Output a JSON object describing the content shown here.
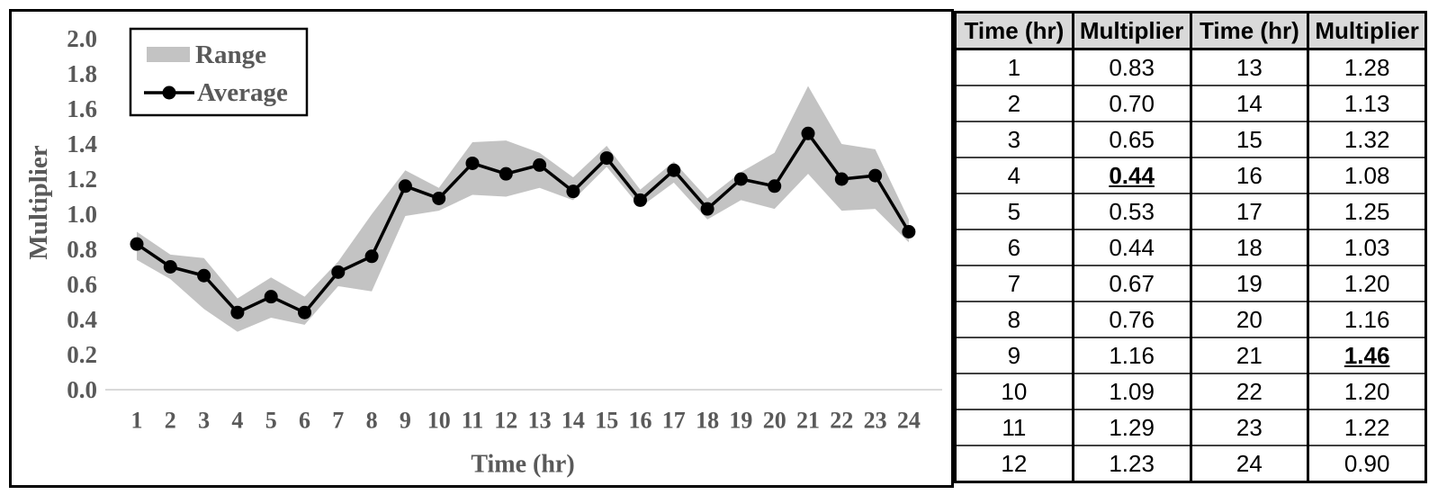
{
  "page": {
    "background": "#ffffff"
  },
  "chart_data": {
    "type": "line",
    "title": "",
    "xlabel": "Time (hr)",
    "ylabel": "Multiplier",
    "x": [
      1,
      2,
      3,
      4,
      5,
      6,
      7,
      8,
      9,
      10,
      11,
      12,
      13,
      14,
      15,
      16,
      17,
      18,
      19,
      20,
      21,
      22,
      23,
      24
    ],
    "xtick_labels": [
      "1",
      "2",
      "3",
      "4",
      "5",
      "6",
      "7",
      "8",
      "9",
      "10",
      "11",
      "12",
      "13",
      "14",
      "15",
      "16",
      "17",
      "18",
      "19",
      "20",
      "21",
      "22",
      "23",
      "24"
    ],
    "ytick_labels": [
      "0.0",
      "0.2",
      "0.4",
      "0.6",
      "0.8",
      "1.0",
      "1.2",
      "1.4",
      "1.6",
      "1.8",
      "2.0"
    ],
    "ylim": [
      0.0,
      2.0
    ],
    "grid": false,
    "legend": {
      "position": "top-left",
      "entries": [
        "Range",
        "Average"
      ]
    },
    "series": [
      {
        "name": "Average",
        "type": "line-markers",
        "color": "#000000",
        "values": [
          0.83,
          0.7,
          0.65,
          0.44,
          0.53,
          0.44,
          0.67,
          0.76,
          1.16,
          1.09,
          1.29,
          1.23,
          1.28,
          1.13,
          1.32,
          1.08,
          1.25,
          1.03,
          1.2,
          1.16,
          1.46,
          1.2,
          1.22,
          0.9
        ]
      },
      {
        "name": "Range",
        "type": "band",
        "color": "#c3c3c3",
        "upper": [
          0.9,
          0.77,
          0.75,
          0.52,
          0.64,
          0.53,
          0.73,
          1.0,
          1.25,
          1.15,
          1.41,
          1.42,
          1.35,
          1.21,
          1.39,
          1.14,
          1.3,
          1.09,
          1.24,
          1.35,
          1.73,
          1.4,
          1.37,
          0.97
        ],
        "lower": [
          0.74,
          0.63,
          0.46,
          0.33,
          0.41,
          0.37,
          0.59,
          0.56,
          0.99,
          1.02,
          1.11,
          1.1,
          1.15,
          1.08,
          1.27,
          1.04,
          1.18,
          0.97,
          1.08,
          1.03,
          1.23,
          1.02,
          1.03,
          0.84
        ]
      }
    ],
    "axis_text_color": "#595959",
    "baseline_color": "#d9d9d9"
  },
  "table": {
    "header_bg": "#d9d9d9",
    "headers": [
      "Time (hr)",
      "Multiplier",
      "Time (hr)",
      "Multiplier"
    ],
    "rows": [
      [
        "1",
        "0.83",
        "13",
        "1.28"
      ],
      [
        "2",
        "0.70",
        "14",
        "1.13"
      ],
      [
        "3",
        "0.65",
        "15",
        "1.32"
      ],
      [
        "4",
        "0.44",
        "16",
        "1.08"
      ],
      [
        "5",
        "0.53",
        "17",
        "1.25"
      ],
      [
        "6",
        "0.44",
        "18",
        "1.03"
      ],
      [
        "7",
        "0.67",
        "19",
        "1.20"
      ],
      [
        "8",
        "0.76",
        "20",
        "1.16"
      ],
      [
        "9",
        "1.16",
        "21",
        "1.46"
      ],
      [
        "10",
        "1.09",
        "22",
        "1.20"
      ],
      [
        "11",
        "1.29",
        "23",
        "1.22"
      ],
      [
        "12",
        "1.23",
        "24",
        "0.90"
      ]
    ],
    "emphasized_cells": [
      [
        3,
        1
      ],
      [
        8,
        3
      ]
    ]
  }
}
